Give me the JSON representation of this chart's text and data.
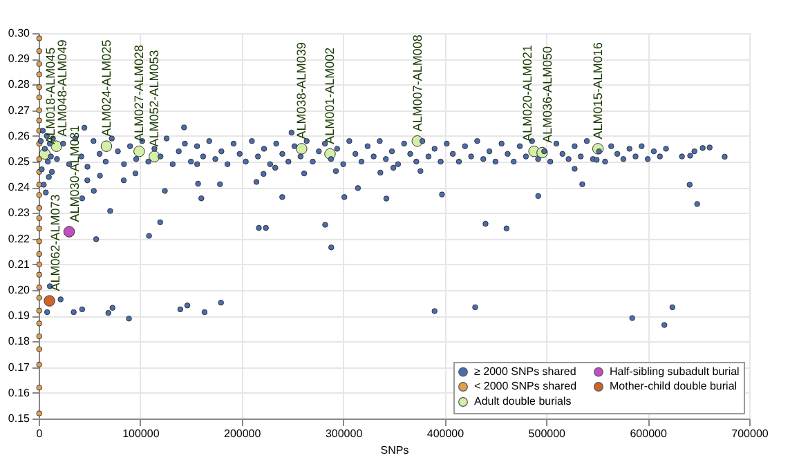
{
  "chart_data": {
    "type": "scatter",
    "xlabel": "SNPs",
    "xlim": [
      0,
      700000
    ],
    "xticks": [
      0,
      100000,
      200000,
      300000,
      400000,
      500000,
      600000,
      700000
    ],
    "ylim": [
      0.15,
      0.3
    ],
    "yticks": [
      0.15,
      0.16,
      0.17,
      0.18,
      0.19,
      {
        "value": 0.2,
        "label": "0.20"
      },
      0.21,
      0.22,
      0.23,
      0.24,
      0.25,
      0.26,
      0.27,
      0.28,
      0.29,
      {
        "value": 0.3,
        "label": "0.30"
      }
    ],
    "grid": true,
    "legend": "bottom right",
    "marker": "circle",
    "series": [
      {
        "name": "≥ 2000 SNPs shared",
        "color": "#4a6cb0",
        "x": [
          2000,
          3000,
          4000,
          5000,
          6000,
          7000,
          8000,
          9000,
          10000,
          11000,
          12000,
          13000,
          14000,
          18000,
          24000,
          30000,
          36000,
          42000,
          48000,
          54000,
          60000,
          66000,
          72000,
          78000,
          84000,
          90000,
          96000,
          102000,
          108000,
          114000,
          120000,
          126000,
          132000,
          138000,
          144000,
          150000,
          156000,
          162000,
          168000,
          174000,
          180000,
          186000,
          192000,
          198000,
          204000,
          210000,
          216000,
          222000,
          228000,
          234000,
          240000,
          246000,
          252000,
          258000,
          264000,
          270000,
          276000,
          282000,
          288000,
          294000,
          300000,
          306000,
          312000,
          318000,
          324000,
          330000,
          336000,
          342000,
          348000,
          354000,
          360000,
          366000,
          372000,
          378000,
          384000,
          390000,
          396000,
          402000,
          408000,
          414000,
          420000,
          426000,
          432000,
          438000,
          444000,
          450000,
          456000,
          462000,
          468000,
          474000,
          480000,
          486000,
          492000,
          498000,
          504000,
          510000,
          516000,
          522000,
          528000,
          534000,
          540000,
          546000,
          552000,
          558000,
          564000,
          570000,
          576000,
          582000,
          588000,
          594000,
          600000,
          606000,
          612000,
          618000,
          45000,
          47900,
          54300,
          42800,
          70400,
          56600,
          60300,
          83800,
          95300,
          108700,
          119700,
          124300,
          143200,
          156100,
          157000,
          160200,
          178600,
          11000,
          179600,
          163400,
          146400,
          139500,
          72700,
          68600,
          88900,
          42800,
          34500,
          21600,
          8300,
          216900,
          223800,
          239900,
          214500,
          221500,
          233000,
          249100,
          261500,
          282200,
          288200,
          292800,
          301100,
          314500,
          336600,
          342500,
          349400,
          376100,
          397300,
          390000,
          430000,
          440200,
          460900,
          492100,
          528000,
          535500,
          549700,
          641300,
          648700,
          641800,
          646000,
          654200,
          661000,
          675800,
          624300,
          584700,
          616400,
          633700
        ],
        "values": [
          0.258,
          0.247,
          0.262,
          0.241,
          0.255,
          0.238,
          0.26,
          0.25,
          0.244,
          0.257,
          0.252,
          0.246,
          0.259,
          0.251,
          0.257,
          0.249,
          0.259,
          0.252,
          0.248,
          0.258,
          0.253,
          0.25,
          0.259,
          0.254,
          0.249,
          0.256,
          0.251,
          0.258,
          0.25,
          0.255,
          0.252,
          0.259,
          0.249,
          0.254,
          0.257,
          0.25,
          0.256,
          0.252,
          0.258,
          0.251,
          0.254,
          0.249,
          0.257,
          0.253,
          0.25,
          0.258,
          0.252,
          0.255,
          0.249,
          0.257,
          0.253,
          0.25,
          0.256,
          0.252,
          0.258,
          0.25,
          0.254,
          0.257,
          0.251,
          0.255,
          0.249,
          0.258,
          0.253,
          0.25,
          0.256,
          0.252,
          0.258,
          0.251,
          0.254,
          0.249,
          0.257,
          0.253,
          0.25,
          0.258,
          0.252,
          0.255,
          0.25,
          0.257,
          0.253,
          0.25,
          0.256,
          0.252,
          0.258,
          0.251,
          0.254,
          0.25,
          0.257,
          0.253,
          0.25,
          0.256,
          0.252,
          0.258,
          0.251,
          0.254,
          0.25,
          0.257,
          0.253,
          0.251,
          0.256,
          0.252,
          0.258,
          0.251,
          0.254,
          0.25,
          0.256,
          0.253,
          0.251,
          0.255,
          0.252,
          0.256,
          0.251,
          0.254,
          0.252,
          0.255,
          0.2632,
          0.2427,
          0.2386,
          0.2357,
          0.2308,
          0.2198,
          0.2445,
          0.2427,
          0.2454,
          0.2211,
          0.2264,
          0.2386,
          0.2633,
          0.249,
          0.2414,
          0.2357,
          0.2412,
          0.2015,
          0.1951,
          0.1914,
          0.194,
          0.1925,
          0.1931,
          0.1911,
          0.1889,
          0.1925,
          0.1914,
          0.1964,
          0.1914,
          0.2242,
          0.2242,
          0.2362,
          0.2421,
          0.2452,
          0.2476,
          0.2613,
          0.2454,
          0.2254,
          0.2166,
          0.2463,
          0.2362,
          0.2397,
          0.2457,
          0.2356,
          0.2476,
          0.2463,
          0.2372,
          0.1918,
          0.1933,
          0.2258,
          0.224,
          0.2366,
          0.2472,
          0.2412,
          0.2507,
          0.241,
          0.2335,
          0.2523,
          0.254,
          0.2553,
          0.2555,
          0.2519,
          0.1933,
          0.1891,
          0.1864,
          0.252
        ]
      },
      {
        "name": "< 2000 SNPs shared",
        "color": "#e0a050",
        "x": [
          500,
          500,
          500,
          500,
          500,
          500,
          500,
          500,
          500,
          500,
          500,
          500,
          500,
          500,
          500,
          500,
          500,
          500,
          500,
          500,
          500,
          500,
          500,
          500,
          500,
          500,
          500,
          500,
          500,
          500
        ],
        "values": [
          0.298,
          0.293,
          0.288,
          0.284,
          0.279,
          0.275,
          0.27,
          0.266,
          0.262,
          0.257,
          0.251,
          0.246,
          0.241,
          0.237,
          0.232,
          0.228,
          0.224,
          0.219,
          0.214,
          0.21,
          0.206,
          0.201,
          0.197,
          0.192,
          0.187,
          0.182,
          0.177,
          0.171,
          0.162,
          0.152
        ]
      },
      {
        "name": "Adult double burials",
        "color": "#d4f0a8",
        "x": [
          6000,
          17500,
          66700,
          99000,
          114000,
          259000,
          287000,
          373000,
          488000,
          496000,
          551000
        ],
        "values": [
          0.253,
          0.256,
          0.256,
          0.254,
          0.252,
          0.255,
          0.253,
          0.258,
          0.254,
          0.2535,
          0.255
        ]
      },
      {
        "name": "Half-sibling subadult burial",
        "color": "#c04fc0",
        "x": [
          30000
        ],
        "values": [
          0.2227
        ]
      },
      {
        "name": "Mother-child double burial",
        "color": "#d0632a",
        "x": [
          10600
        ],
        "values": [
          0.1958
        ]
      }
    ],
    "annotations": [
      {
        "text": "ALM018-ALM045",
        "x": 6000,
        "y": 0.253
      },
      {
        "text": "ALM048-ALM049",
        "x": 17500,
        "y": 0.256
      },
      {
        "text": "ALM030-ALM031",
        "x": 30000,
        "y": 0.2227
      },
      {
        "text": "ALM062-ALM073",
        "x": 10600,
        "y": 0.1958
      },
      {
        "text": "ALM024-ALM025",
        "x": 66700,
        "y": 0.256
      },
      {
        "text": "ALM027-ALM028",
        "x": 99000,
        "y": 0.254
      },
      {
        "text": "ALM052-ALM053",
        "x": 114000,
        "y": 0.252
      },
      {
        "text": "ALM038-ALM039",
        "x": 259000,
        "y": 0.255
      },
      {
        "text": "ALM001-ALM002",
        "x": 287000,
        "y": 0.253
      },
      {
        "text": "ALM007-ALM008",
        "x": 373000,
        "y": 0.258
      },
      {
        "text": "ALM020-ALM021",
        "x": 488000,
        "y": 0.254
      },
      {
        "text": "ALM036-ALM050",
        "x": 496000,
        "y": 0.2535
      },
      {
        "text": "ALM015-ALM016",
        "x": 551000,
        "y": 0.255
      }
    ]
  }
}
